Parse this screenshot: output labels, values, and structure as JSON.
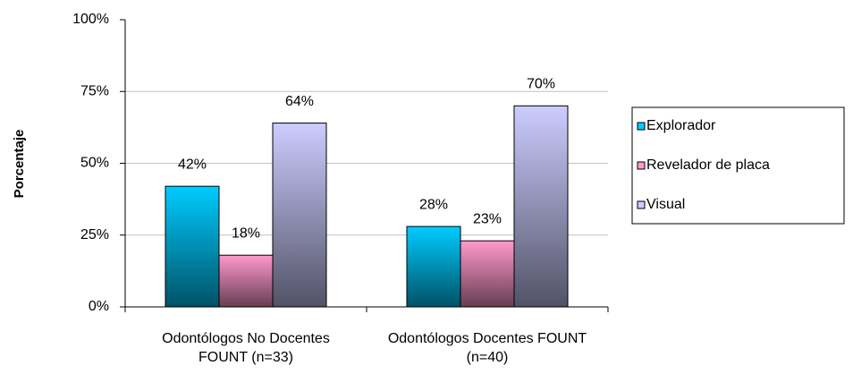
{
  "chart_data": {
    "type": "bar",
    "y_label": "Porcentaje",
    "categories": [
      "Odontólogos No Docentes FOUNT (n=33)",
      "Odontólogos Docentes FOUNT (n=40)"
    ],
    "series": [
      {
        "name": "Explorador",
        "color": "#00ccff",
        "values": [
          42,
          28
        ],
        "value_labels": [
          "42%",
          "28%"
        ]
      },
      {
        "name": "Revelador de placa",
        "color": "#ff99cc",
        "values": [
          18,
          23
        ],
        "value_labels": [
          "18%",
          "23%"
        ]
      },
      {
        "name": "Visual",
        "color": "#ccccff",
        "values": [
          64,
          70
        ],
        "value_labels": [
          "64%",
          "70%"
        ]
      }
    ],
    "ylim": [
      0,
      100
    ],
    "yticks": [
      {
        "value": 0,
        "label": "0%"
      },
      {
        "value": 25,
        "label": "25%"
      },
      {
        "value": 50,
        "label": "50%"
      },
      {
        "value": 75,
        "label": "75%"
      },
      {
        "value": 100,
        "label": "100%"
      }
    ],
    "grid": true,
    "legend": "right"
  }
}
